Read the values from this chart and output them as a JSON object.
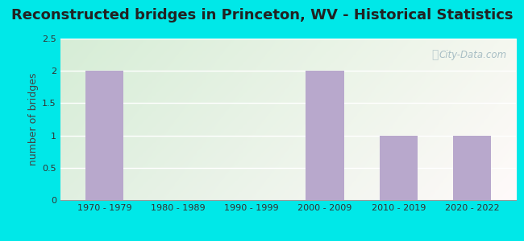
{
  "title": "Reconstructed bridges in Princeton, WV - Historical Statistics",
  "categories": [
    "1970 - 1979",
    "1980 - 1989",
    "1990 - 1999",
    "2000 - 2009",
    "2010 - 2019",
    "2020 - 2022"
  ],
  "values": [
    2,
    0,
    0,
    2,
    1,
    1
  ],
  "bar_color": "#b8a8cc",
  "ylabel": "number of bridges",
  "ylim": [
    0,
    2.5
  ],
  "yticks": [
    0,
    0.5,
    1,
    1.5,
    2,
    2.5
  ],
  "background_outer": "#00e8e8",
  "title_fontsize": 13,
  "axis_label_fontsize": 9,
  "tick_fontsize": 8,
  "watermark_text": "City-Data.com",
  "watermark_color": "#a0b8c0"
}
